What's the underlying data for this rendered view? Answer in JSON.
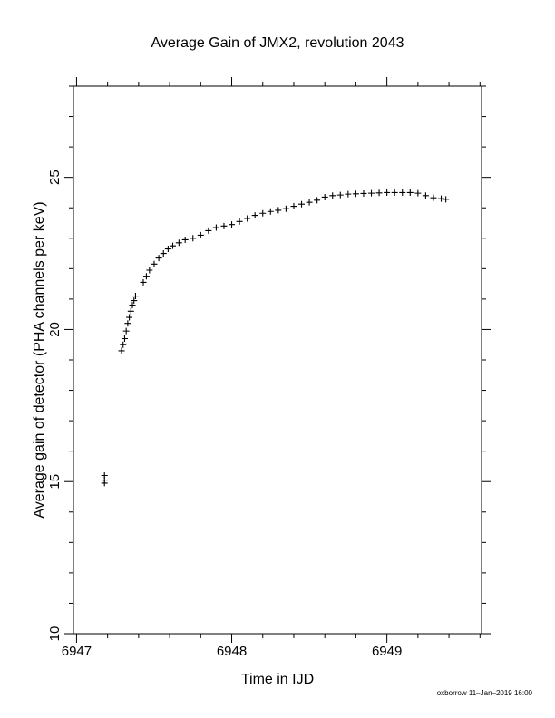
{
  "chart_data": {
    "type": "scatter",
    "title": "Average Gain of JMX2, revolution 2043",
    "xlabel": "Time in IJD",
    "ylabel": "Average gain of detector (PHA channels per keV)",
    "xlim": [
      6946.98,
      6949.61
    ],
    "ylim": [
      10,
      28
    ],
    "x_ticks": [
      6947,
      6948,
      6949
    ],
    "y_ticks": [
      10,
      15,
      20,
      25
    ],
    "grid": false,
    "marker": "+",
    "series": [
      {
        "x": [
          6947.18,
          6947.18,
          6947.18,
          6947.29,
          6947.3,
          6947.31,
          6947.32,
          6947.33,
          6947.34,
          6947.35,
          6947.36,
          6947.37,
          6947.38,
          6947.43,
          6947.45,
          6947.47,
          6947.5,
          6947.53,
          6947.56,
          6947.59,
          6947.62,
          6947.66,
          6947.7,
          6947.75,
          6947.8,
          6947.85,
          6947.9,
          6947.95,
          6948.0,
          6948.05,
          6948.1,
          6948.15,
          6948.2,
          6948.25,
          6948.3,
          6948.35,
          6948.4,
          6948.45,
          6948.5,
          6948.55,
          6948.6,
          6948.65,
          6948.7,
          6948.75,
          6948.8,
          6948.85,
          6948.9,
          6948.95,
          6949.0,
          6949.05,
          6949.1,
          6949.15,
          6949.2,
          6949.25,
          6949.3,
          6949.35,
          6949.38
        ],
        "y": [
          15.2,
          15.05,
          14.95,
          19.3,
          19.5,
          19.7,
          19.95,
          20.2,
          20.4,
          20.6,
          20.8,
          20.95,
          21.1,
          21.55,
          21.75,
          21.95,
          22.15,
          22.35,
          22.5,
          22.65,
          22.75,
          22.85,
          22.95,
          23.0,
          23.1,
          23.25,
          23.35,
          23.4,
          23.45,
          23.55,
          23.65,
          23.75,
          23.82,
          23.88,
          23.92,
          23.97,
          24.05,
          24.12,
          24.18,
          24.25,
          24.35,
          24.4,
          24.42,
          24.45,
          24.46,
          24.47,
          24.48,
          24.49,
          24.5,
          24.5,
          24.5,
          24.5,
          24.48,
          24.4,
          24.33,
          24.3,
          24.28
        ]
      }
    ]
  },
  "footer": "oxborrow 11–Jan–2019 16:00"
}
